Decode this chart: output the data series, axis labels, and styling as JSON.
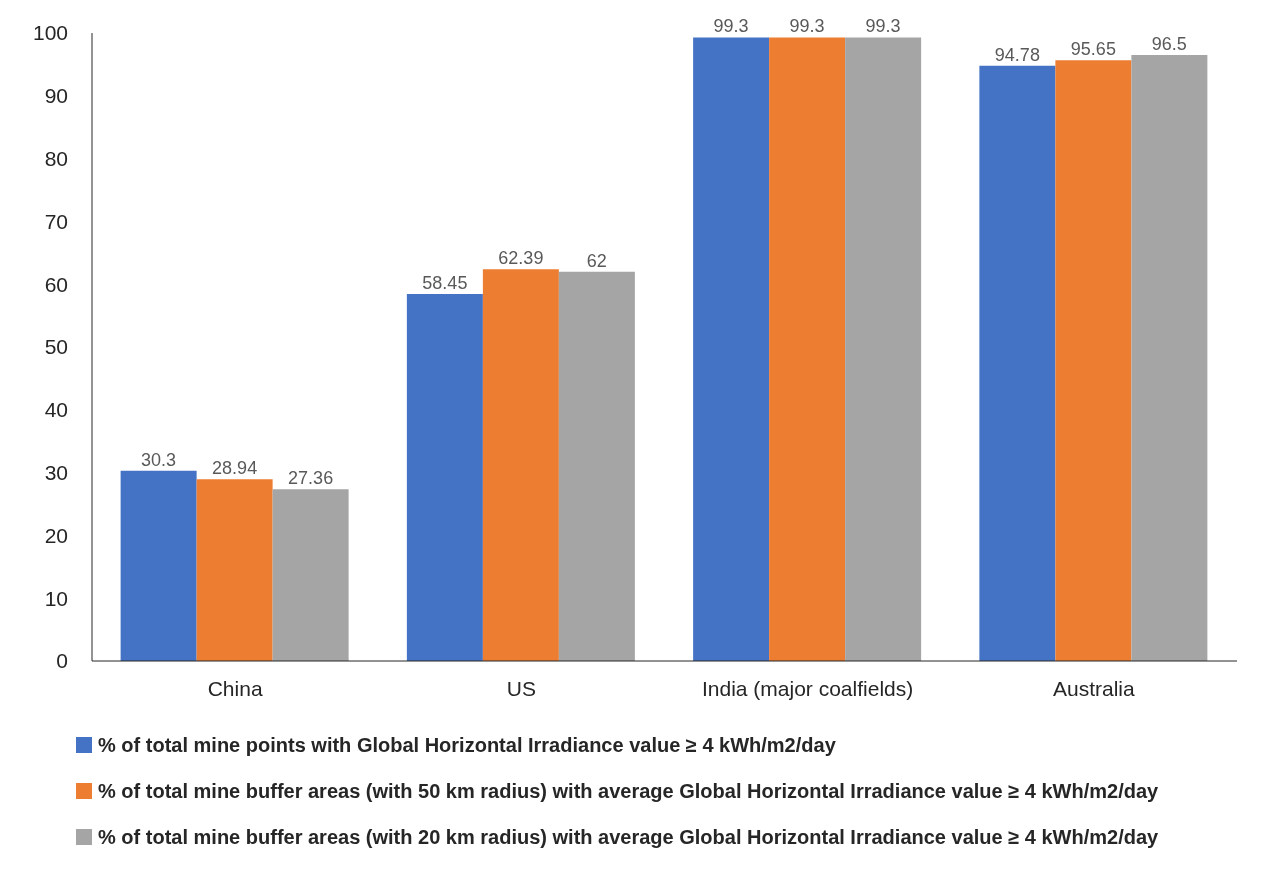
{
  "chart_data": {
    "type": "bar",
    "categories": [
      "China",
      "US",
      "India  (major coalfields)",
      "Australia"
    ],
    "series": [
      {
        "name": "% of total mine points with Global Horizontal Irradiance value ≥ 4 kWh/m2/day",
        "color": "#4472c4",
        "values": [
          30.3,
          58.45,
          99.3,
          94.78
        ]
      },
      {
        "name": "% of total mine buffer areas (with 50 km radius) with average Global Horizontal Irradiance value  ≥ 4 kWh/m2/day",
        "color": "#ed7d31",
        "values": [
          28.94,
          62.39,
          99.3,
          95.65
        ]
      },
      {
        "name": "% of total mine buffer areas (with 20 km radius) with average Global Horizontal Irradiance value  ≥ 4 kWh/m2/day",
        "color": "#a5a5a5",
        "values": [
          27.36,
          62,
          99.3,
          96.5
        ]
      }
    ],
    "ylim": [
      0,
      100
    ],
    "yticks": [
      0,
      10,
      20,
      30,
      40,
      50,
      60,
      70,
      80,
      90,
      100
    ],
    "grid": false,
    "legend": "bottom",
    "data_labels": true
  }
}
